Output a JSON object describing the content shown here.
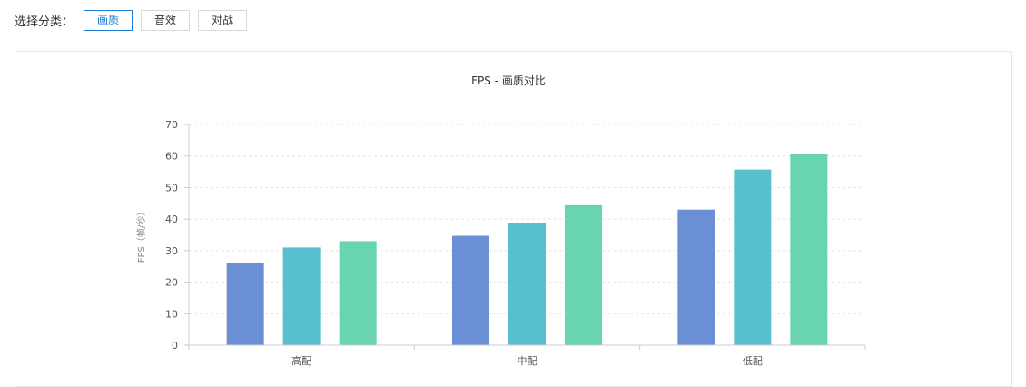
{
  "filter": {
    "label": "选择分类：",
    "options": [
      "画质",
      "音效",
      "对战"
    ],
    "selected": "画质"
  },
  "chart_data": {
    "type": "bar",
    "title": "FPS - 画质对比",
    "ylabel": "FPS（帧/秒）",
    "xlabel": "",
    "categories": [
      "高配",
      "中配",
      "低配"
    ],
    "ylim": [
      0,
      70
    ],
    "yticks": [
      0,
      10,
      20,
      30,
      40,
      50,
      60,
      70
    ],
    "grid": true,
    "series": [
      {
        "values": [
          26,
          34.7,
          43
        ],
        "color": "#6a8fd5"
      },
      {
        "values": [
          31,
          38.8,
          55.7
        ],
        "color": "#57bfcd"
      },
      {
        "values": [
          33,
          44.4,
          60.5
        ],
        "color": "#68d4b2"
      }
    ]
  }
}
